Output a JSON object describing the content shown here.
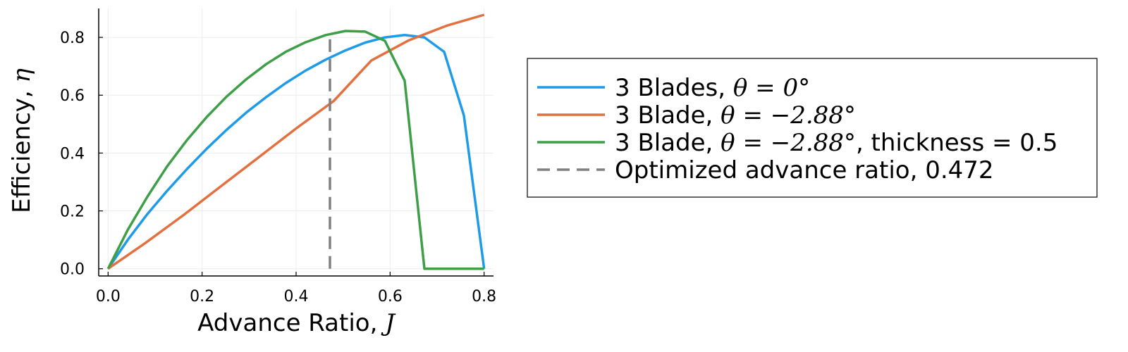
{
  "chart_data": {
    "type": "line",
    "xlabel": "Advance Ratio, ",
    "xlabel_symbol": "J",
    "ylabel": "Efficiency, ",
    "ylabel_symbol": "η",
    "xlim": [
      -0.02,
      0.82
    ],
    "ylim": [
      -0.025,
      0.9
    ],
    "xticks": [
      "0.0",
      "0.2",
      "0.4",
      "0.6",
      "0.8"
    ],
    "yticks": [
      "0.0",
      "0.2",
      "0.4",
      "0.6",
      "0.8"
    ],
    "grid": true,
    "legend_position": "outside-right",
    "series": [
      {
        "name": "3 Blades, θ = 0°",
        "legend_text": "3 Blades, ",
        "legend_math": "θ = 0°",
        "legend_suffix": "",
        "color": "#1e9be8",
        "dash": false,
        "x": [
          0.0,
          0.042,
          0.084,
          0.126,
          0.168,
          0.21,
          0.252,
          0.294,
          0.336,
          0.378,
          0.42,
          0.462,
          0.505,
          0.547,
          0.589,
          0.631,
          0.673,
          0.715,
          0.757,
          0.8
        ],
        "y": [
          0.0,
          0.1,
          0.19,
          0.27,
          0.345,
          0.415,
          0.48,
          0.54,
          0.593,
          0.642,
          0.685,
          0.722,
          0.755,
          0.782,
          0.8,
          0.808,
          0.8,
          0.75,
          0.53,
          0.0
        ]
      },
      {
        "name": "3 Blade, θ = −2.88°",
        "legend_text": "3 Blade, ",
        "legend_math": "θ = −2.88°",
        "legend_suffix": "",
        "color": "#e3703f",
        "dash": false,
        "x": [
          0.0,
          0.08,
          0.16,
          0.24,
          0.32,
          0.4,
          0.48,
          0.56,
          0.64,
          0.72,
          0.8
        ],
        "y": [
          0.0,
          0.09,
          0.185,
          0.285,
          0.385,
          0.485,
          0.58,
          0.72,
          0.79,
          0.84,
          0.878
        ]
      },
      {
        "name": "3 Blade, θ = −2.88°, thickness = 0.5",
        "legend_text": "3 Blade, ",
        "legend_math": "θ = −2.88°",
        "legend_suffix": ", thickness = 0.5",
        "color": "#3f9e48",
        "dash": false,
        "x": [
          0.0,
          0.042,
          0.084,
          0.126,
          0.168,
          0.21,
          0.252,
          0.294,
          0.336,
          0.378,
          0.42,
          0.463,
          0.505,
          0.547,
          0.589,
          0.631,
          0.673,
          0.715,
          0.757,
          0.8
        ],
        "y": [
          0.0,
          0.135,
          0.25,
          0.355,
          0.445,
          0.525,
          0.595,
          0.655,
          0.707,
          0.75,
          0.783,
          0.808,
          0.822,
          0.82,
          0.788,
          0.65,
          0.0,
          0.0,
          0.0,
          0.0
        ]
      },
      {
        "name": "Optimized advance ratio, 0.472",
        "legend_text": "Optimized advance ratio, 0.472",
        "legend_math": "",
        "legend_suffix": "",
        "color": "#808080",
        "dash": true,
        "x": [
          0.472,
          0.472
        ],
        "y": [
          0.0,
          0.808
        ]
      }
    ]
  }
}
